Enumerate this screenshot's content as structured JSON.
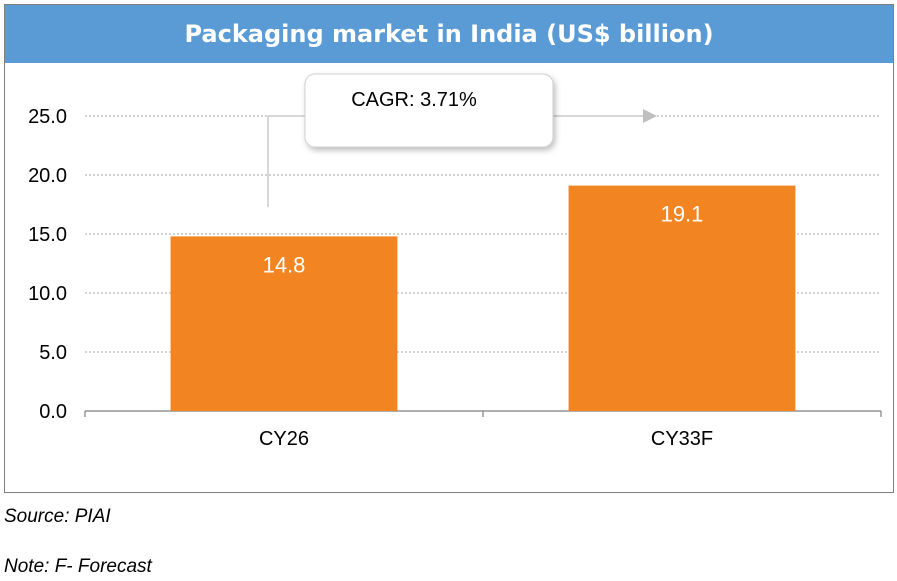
{
  "chart_data": {
    "type": "bar",
    "title": "Packaging market in India (US$ billion)",
    "categories": [
      "CY26",
      "CY33F"
    ],
    "series": [
      {
        "values": [
          14.8,
          19.1
        ]
      }
    ],
    "data_labels": [
      "14.8",
      "19.1"
    ],
    "y_ticks": [
      "0.0",
      "5.0",
      "10.0",
      "15.0",
      "20.0",
      "25.0"
    ],
    "ylim": [
      0,
      25
    ],
    "grid": true,
    "xlabel": "",
    "ylabel": "",
    "annotation": "CAGR: 3.71%",
    "colors": {
      "bar": "#f28522",
      "title_bg": "#5b9bd5",
      "grid": "#a6a6a6"
    }
  },
  "footer": {
    "source": "Source: PIAI",
    "note": "Note: F- Forecast"
  }
}
